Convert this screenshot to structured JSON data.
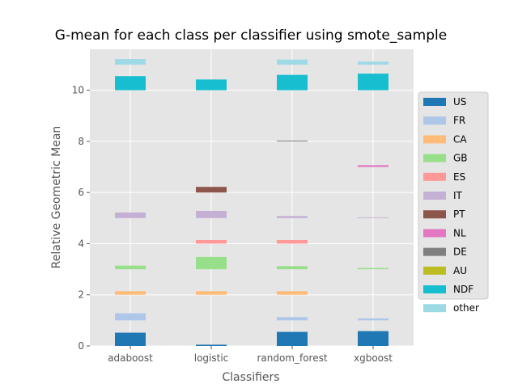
{
  "chart_data": {
    "type": "bar",
    "title": "G-mean for each class per classifier using smote_sample",
    "xlabel": "Classifiers",
    "ylabel": "Relative Geometric Mean",
    "categories": [
      "adaboost",
      "logistic",
      "random_forest",
      "xgboost"
    ],
    "ylim": [
      0,
      11.6
    ],
    "yticks": [
      0,
      2,
      4,
      6,
      8,
      10
    ],
    "grid": true,
    "legend_position": "right",
    "series": [
      {
        "name": "US",
        "color": "#1f77b4",
        "offset": 0,
        "values": [
          0.52,
          0.05,
          0.55,
          0.58
        ]
      },
      {
        "name": "FR",
        "color": "#aec7e8",
        "offset": 1,
        "values": [
          0.28,
          0.0,
          0.13,
          0.08
        ]
      },
      {
        "name": "CA",
        "color": "#ffbb78",
        "offset": 2,
        "values": [
          0.14,
          0.14,
          0.14,
          0.0
        ]
      },
      {
        "name": "GB",
        "color": "#98df8a",
        "offset": 3,
        "values": [
          0.14,
          0.48,
          0.12,
          0.05
        ]
      },
      {
        "name": "ES",
        "color": "#ff9896",
        "offset": 4,
        "values": [
          0.0,
          0.14,
          0.14,
          0.0
        ]
      },
      {
        "name": "IT",
        "color": "#c5b0d5",
        "offset": 5,
        "values": [
          0.22,
          0.28,
          0.08,
          0.03
        ]
      },
      {
        "name": "PT",
        "color": "#8c564b",
        "offset": 6,
        "values": [
          0.0,
          0.22,
          0.0,
          0.0
        ]
      },
      {
        "name": "NL",
        "color": "#e377c2",
        "offset": 7,
        "values": [
          0.0,
          0.0,
          0.0,
          0.07
        ]
      },
      {
        "name": "DE",
        "color": "#7f7f7f",
        "offset": 8,
        "values": [
          0.0,
          0.0,
          0.03,
          0.0
        ]
      },
      {
        "name": "AU",
        "color": "#bcbd22",
        "offset": 9,
        "values": [
          0.0,
          0.0,
          0.0,
          0.0
        ]
      },
      {
        "name": "NDF",
        "color": "#17becf",
        "offset": 10,
        "values": [
          0.55,
          0.42,
          0.6,
          0.65
        ]
      },
      {
        "name": "other",
        "color": "#9edae5",
        "offset": 11,
        "values": [
          0.22,
          0.0,
          0.2,
          0.12
        ]
      }
    ]
  }
}
